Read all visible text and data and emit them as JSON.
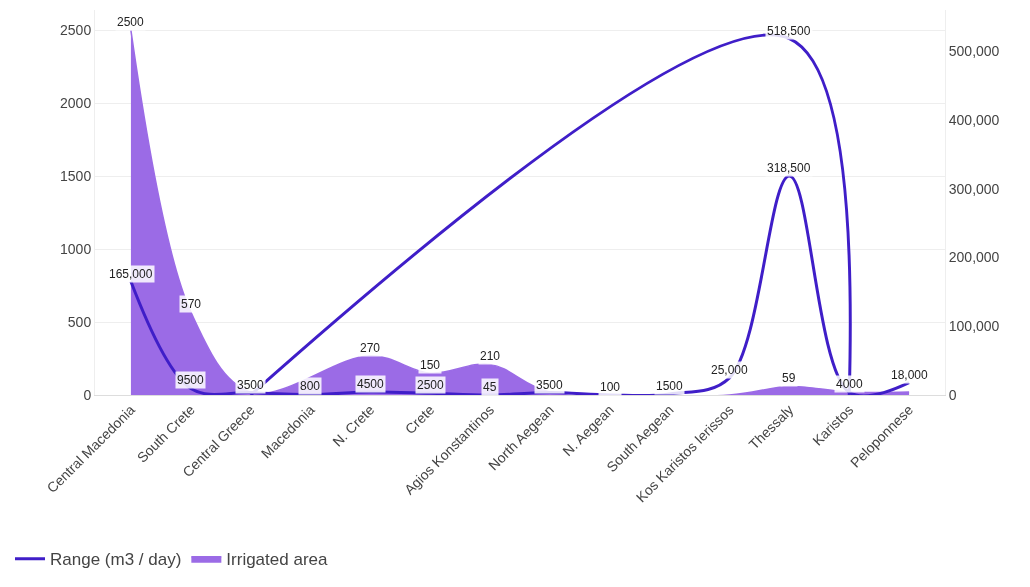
{
  "chart_data": {
    "type": "line",
    "categories": [
      "Central Macedonia",
      "South Crete",
      "Central Greece",
      "Macedonia",
      "N. Crete",
      "Crete",
      "Agios Konstantinos",
      "North Aegean",
      "N. Aegean",
      "South Aegean",
      "Kos Karistos Ierissos",
      "Thessaly",
      "Karistos",
      "Peloponnese"
    ],
    "series": [
      {
        "name": "Range (m3 / day)",
        "axis": "y2",
        "color": "#3f1ec8",
        "values": [
          165000,
          9500,
          3500,
          800,
          4500,
          2500,
          45,
          3500,
          100,
          1500,
          25000,
          318500,
          4000,
          18000
        ],
        "value_labels": [
          "165,000",
          "9500",
          "3500",
          "800",
          "4500",
          "2500",
          "45",
          "3500",
          "100",
          "1500",
          "25,000",
          "318,500",
          "4000",
          "18,000"
        ]
      },
      {
        "axis": "y2",
        "color": "#3f1ec8",
        "values": [
          null,
          null,
          0,
          null,
          null,
          null,
          null,
          null,
          null,
          null,
          null,
          518500,
          0,
          null
        ],
        "value_labels": [
          null,
          null,
          null,
          null,
          null,
          null,
          null,
          null,
          null,
          null,
          null,
          "518,500",
          null,
          null
        ]
      },
      {
        "name": "Irrigated area",
        "type": "area",
        "color": "#9b6be6",
        "values": [
          2500,
          570,
          20,
          null,
          270,
          150,
          210,
          20,
          null,
          null,
          0,
          59,
          20,
          20
        ],
        "value_labels": [
          "2500",
          "570",
          null,
          null,
          "270",
          "150",
          "210",
          null,
          null,
          null,
          null,
          "59",
          null,
          null
        ]
      }
    ],
    "ylim": [
      0,
      2640
    ],
    "yticks": [
      0,
      500,
      1000,
      1500,
      2000,
      2500
    ],
    "y2lim": [
      0,
      560000
    ],
    "y2ticks": [
      0,
      {
        "value": 100000,
        "label": "100,000"
      },
      {
        "value": 200000,
        "label": "200,000"
      },
      {
        "value": 300000,
        "label": "300,000"
      },
      {
        "value": 400000,
        "label": "400,000"
      },
      {
        "value": 500000,
        "label": "500,000"
      }
    ],
    "grid": "y",
    "legend": "bottom left",
    "marker": "none",
    "line_style": "solid"
  }
}
